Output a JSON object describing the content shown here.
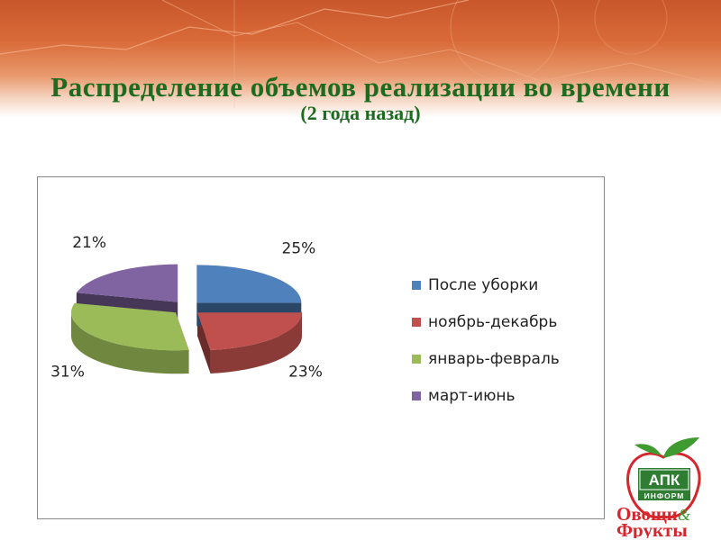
{
  "slide": {
    "title": "Распределение объемов реализации во времени",
    "subtitle": "(2 года назад)"
  },
  "chart_data": {
    "type": "pie",
    "categories": [
      "После уборки",
      "ноябрь-декабрь",
      "январь-февраль",
      "март-июнь"
    ],
    "values": [
      25,
      23,
      31,
      21
    ],
    "data_labels": [
      "25%",
      "23%",
      "31%",
      "21%"
    ],
    "colors": [
      "#4f81bd",
      "#c0504d",
      "#9bbb59",
      "#8064a2"
    ],
    "exploded": true,
    "three_d": true,
    "legend_position": "right"
  },
  "logo": {
    "line1": "АПК",
    "line2": "ИНФОРМ",
    "line3": "Овощи",
    "amp": "&",
    "line4": "Фрукты"
  }
}
